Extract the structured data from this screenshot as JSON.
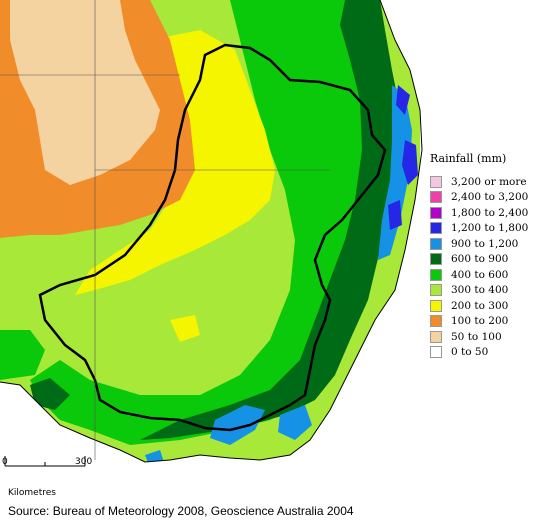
{
  "legend": {
    "title": "Rainfall (mm)",
    "items": [
      {
        "label": "3,200 or more",
        "color": "#f4c6df"
      },
      {
        "label": "2,400 to 3,200",
        "color": "#f03fa7"
      },
      {
        "label": "1,800 to 2,400",
        "color": "#b400c8"
      },
      {
        "label": "1,200 to 1,800",
        "color": "#2626e6"
      },
      {
        "label": "900 to 1,200",
        "color": "#1592e6"
      },
      {
        "label": "600 to 900",
        "color": "#006b16"
      },
      {
        "label": "400 to 600",
        "color": "#0ac80a"
      },
      {
        "label": "300 to 400",
        "color": "#a8e838"
      },
      {
        "label": "200 to 300",
        "color": "#f5f500"
      },
      {
        "label": "100 to 200",
        "color": "#f08c2a"
      },
      {
        "label": "50 to 100",
        "color": "#f5d3a0"
      },
      {
        "label": "0 to 50",
        "color": "#ffffff"
      }
    ]
  },
  "scale": {
    "start": "0",
    "end": "300",
    "unit": "Kilometres"
  },
  "source": "Source: Bureau of Meteorology 2008, Geoscience Australia 2004"
}
